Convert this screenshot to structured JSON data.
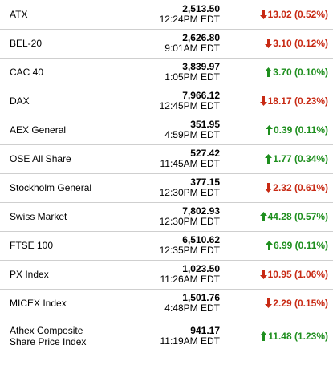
{
  "colors": {
    "up": "#1e8f1e",
    "down": "#c82a14",
    "divider": "#cfcfcf"
  },
  "rows": [
    {
      "name": "ATX",
      "price": "2,513.50",
      "time": "12:24PM EDT",
      "change": "13.02 (0.52%)",
      "direction": "down",
      "icon": "arrow-down-icon"
    },
    {
      "name": "BEL-20",
      "price": "2,626.80",
      "time": "9:01AM EDT",
      "change": "3.10 (0.12%)",
      "direction": "down",
      "icon": "arrow-down-icon"
    },
    {
      "name": "CAC 40",
      "price": "3,839.97",
      "time": "1:05PM EDT",
      "change": "3.70 (0.10%)",
      "direction": "up",
      "icon": "arrow-up-icon"
    },
    {
      "name": "DAX",
      "price": "7,966.12",
      "time": "12:45PM EDT",
      "change": "18.17 (0.23%)",
      "direction": "down",
      "icon": "arrow-down-icon"
    },
    {
      "name": "AEX General",
      "price": "351.95",
      "time": "4:59PM EDT",
      "change": "0.39 (0.11%)",
      "direction": "up",
      "icon": "arrow-up-icon"
    },
    {
      "name": "OSE All Share",
      "price": "527.42",
      "time": "11:45AM EDT",
      "change": "1.77 (0.34%)",
      "direction": "up",
      "icon": "arrow-up-icon"
    },
    {
      "name": "Stockholm General",
      "price": "377.15",
      "time": "12:30PM EDT",
      "change": "2.32 (0.61%)",
      "direction": "down",
      "icon": "arrow-down-icon"
    },
    {
      "name": "Swiss Market",
      "price": "7,802.93",
      "time": "12:30PM EDT",
      "change": "44.28 (0.57%)",
      "direction": "up",
      "icon": "arrow-up-icon"
    },
    {
      "name": "FTSE 100",
      "price": "6,510.62",
      "time": "12:35PM EDT",
      "change": "6.99 (0.11%)",
      "direction": "up",
      "icon": "arrow-up-icon"
    },
    {
      "name": "PX Index",
      "price": "1,023.50",
      "time": "11:26AM EDT",
      "change": "10.95 (1.06%)",
      "direction": "down",
      "icon": "arrow-down-icon"
    },
    {
      "name": "MICEX Index",
      "price": "1,501.76",
      "time": "4:48PM EDT",
      "change": "2.29 (0.15%)",
      "direction": "down",
      "icon": "arrow-down-icon"
    },
    {
      "name": "Athex Composite Share Price Index",
      "name_line1": "Athex Composite",
      "name_line2": "Share Price Index",
      "price": "941.17",
      "time": "11:19AM EDT",
      "change": "11.48 (1.23%)",
      "direction": "up",
      "icon": "arrow-up-icon"
    }
  ]
}
